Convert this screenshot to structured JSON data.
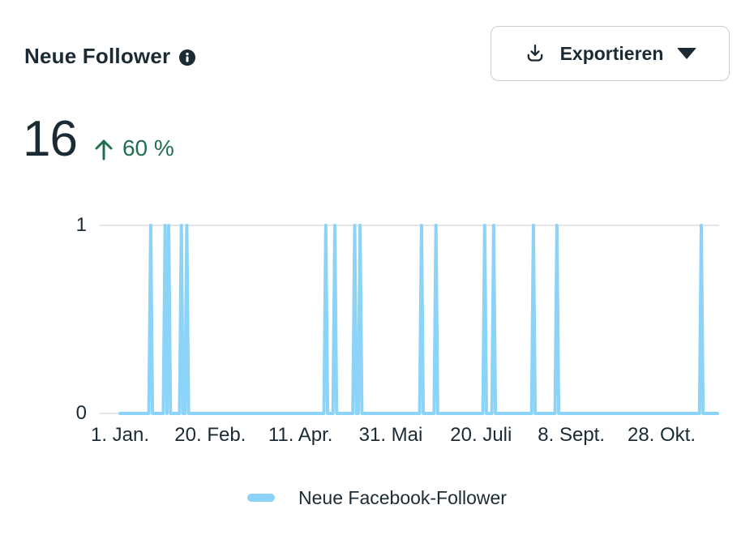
{
  "header": {
    "title": "Neue Follower",
    "export_button": {
      "label": "Exportieren"
    }
  },
  "kpi": {
    "value": "16",
    "trend_direction": "up",
    "trend_percent": "60 %"
  },
  "chart_data": {
    "type": "line",
    "title": "Neue Follower",
    "series": [
      {
        "name": "Neue Facebook-Follower",
        "color": "#8bd3f7",
        "days_total": 332,
        "baseline_value": 0,
        "spike_value": 1,
        "spike_day_indices": [
          17,
          25,
          27,
          34,
          37,
          114,
          119,
          130,
          133,
          167,
          175,
          202,
          207,
          229,
          242,
          322
        ]
      }
    ],
    "x_ticks": [
      {
        "day": 0,
        "label": "1. Jan."
      },
      {
        "day": 50,
        "label": "20. Feb."
      },
      {
        "day": 100,
        "label": "11. Apr."
      },
      {
        "day": 150,
        "label": "31. Mai"
      },
      {
        "day": 200,
        "label": "20. Juli"
      },
      {
        "day": 250,
        "label": "8. Sept."
      },
      {
        "day": 300,
        "label": "28. Okt."
      }
    ],
    "y_ticks": [
      0,
      1
    ],
    "ylim": [
      0,
      1
    ],
    "grid": "top-gridline-only",
    "legend_position": "bottom-center"
  },
  "legend": {
    "items": [
      {
        "label": "Neue Facebook-Follower",
        "color": "#8bd3f7"
      }
    ]
  },
  "colors": {
    "text_dark": "#1c2b33",
    "positive_green": "#216e4e",
    "line_blue": "#8bd3f7",
    "gridline": "#d8dbde",
    "button_border": "#c6cdd3"
  }
}
